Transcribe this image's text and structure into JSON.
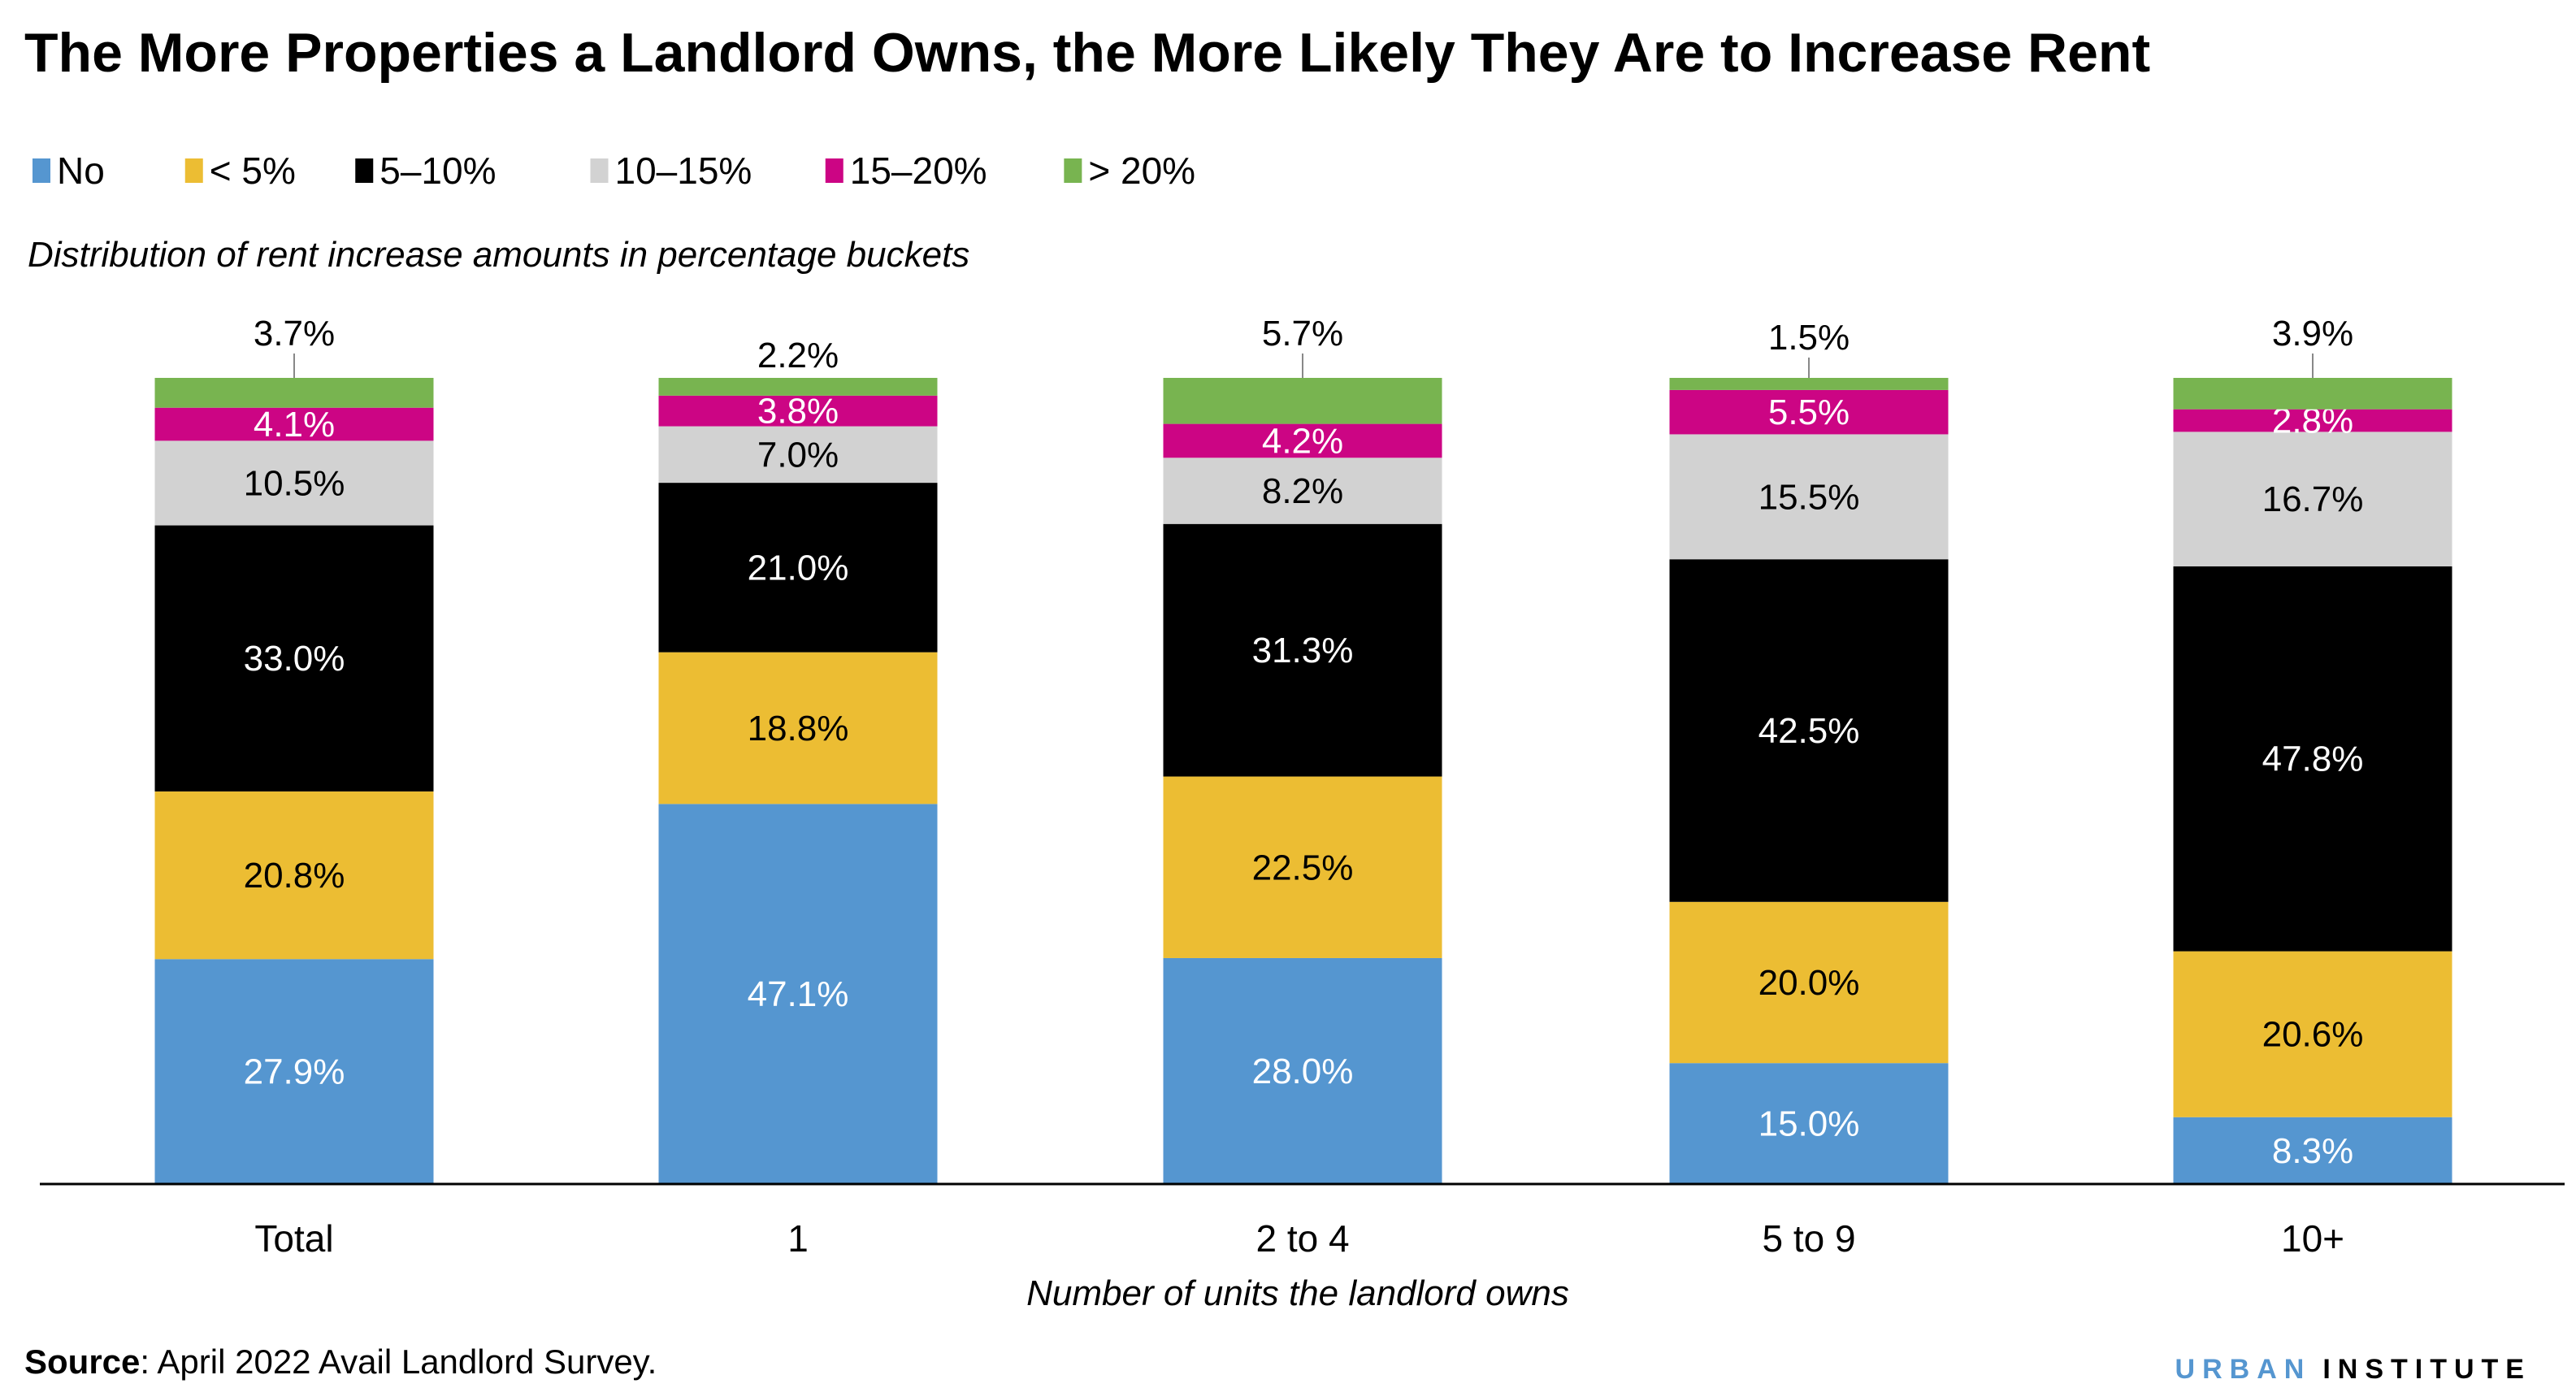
{
  "chart_data": {
    "type": "bar",
    "stacked": true,
    "title": "The More Properties a Landlord Owns, the More Likely They Are to Increase Rent",
    "subtitle": "Distribution of rent increase amounts in percentage buckets",
    "xlabel": "Number of units the landlord owns",
    "ylabel": "",
    "ylim": [
      0,
      100
    ],
    "grid": false,
    "legend_position": "top-left",
    "categories": [
      "Total",
      "1",
      "2 to 4",
      "5 to 9",
      "10+"
    ],
    "series": [
      {
        "name": "No",
        "color": "#5596d0",
        "values": [
          27.9,
          47.1,
          28.0,
          15.0,
          8.3
        ]
      },
      {
        "name": "< 5%",
        "color": "#ecbd33",
        "values": [
          20.8,
          18.8,
          22.5,
          20.0,
          20.6
        ]
      },
      {
        "name": "5–10%",
        "color": "#000000",
        "values": [
          33.0,
          21.0,
          31.3,
          42.5,
          47.8
        ]
      },
      {
        "name": "10–15%",
        "color": "#d2d2d2",
        "values": [
          10.5,
          7.0,
          8.2,
          15.5,
          16.7
        ]
      },
      {
        "name": "15–20%",
        "color": "#cc0584",
        "values": [
          4.1,
          3.8,
          4.2,
          5.5,
          2.8
        ]
      },
      {
        "name": "> 20%",
        "color": "#78b450",
        "values": [
          3.7,
          2.2,
          5.7,
          1.5,
          3.9
        ]
      }
    ],
    "data_labels": [
      [
        "27.9%",
        "47.1%",
        "28.0%",
        "15.0%",
        "8.3%"
      ],
      [
        "20.8%",
        "18.8%",
        "22.5%",
        "20.0%",
        "20.6%"
      ],
      [
        "33.0%",
        "21.0%",
        "31.3%",
        "42.5%",
        "47.8%"
      ],
      [
        "10.5%",
        "7.0%",
        "8.2%",
        "15.5%",
        "16.7%"
      ],
      [
        "4.1%",
        "3.8%",
        "4.2%",
        "5.5%",
        "2.8%"
      ],
      [
        "3.7%",
        "2.2%",
        "5.7%",
        "1.5%",
        "3.9%"
      ]
    ]
  },
  "source": {
    "label": "Source",
    "text": ": April 2022 Avail Landlord Survey."
  },
  "logo": {
    "part1": "URBAN",
    "part2": "INSTITUTE",
    "color1": "#5596d0",
    "color2": "#000000"
  }
}
